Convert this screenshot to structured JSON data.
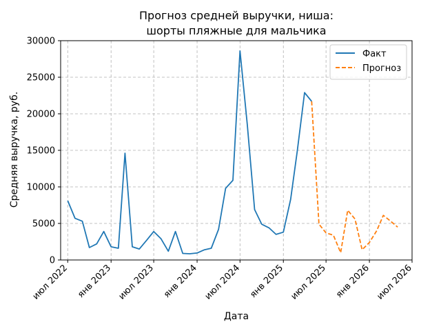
{
  "chart_data": {
    "type": "line",
    "title_lines": [
      "Прогноз средней выручки, ниша:",
      "шорты пляжные для мальчика"
    ],
    "xlabel": "Дата",
    "ylabel": "Средняя выручка, руб.",
    "ylim": [
      0,
      30000
    ],
    "yticks": [
      0,
      5000,
      10000,
      15000,
      20000,
      25000,
      30000
    ],
    "xlim": [
      "2022-06-01",
      "2026-07-01"
    ],
    "xticks": [
      {
        "date": "2022-07-01",
        "label": "июл 2022"
      },
      {
        "date": "2023-01-01",
        "label": "янв 2023"
      },
      {
        "date": "2023-07-01",
        "label": "июл 2023"
      },
      {
        "date": "2024-01-01",
        "label": "янв 2024"
      },
      {
        "date": "2024-07-01",
        "label": "июл 2024"
      },
      {
        "date": "2025-01-01",
        "label": "янв 2025"
      },
      {
        "date": "2025-07-01",
        "label": "июл 2025"
      },
      {
        "date": "2026-01-01",
        "label": "янв 2026"
      },
      {
        "date": "2026-07-01",
        "label": "июл 2026"
      }
    ],
    "grid": true,
    "legend_position": "top-right",
    "series": [
      {
        "name": "Факт",
        "color": "#1f77b4",
        "style": "solid",
        "points": [
          [
            "2022-07-01",
            8100
          ],
          [
            "2022-08-01",
            5700
          ],
          [
            "2022-09-01",
            5300
          ],
          [
            "2022-10-01",
            1700
          ],
          [
            "2022-11-01",
            2200
          ],
          [
            "2022-12-01",
            3900
          ],
          [
            "2023-01-01",
            1800
          ],
          [
            "2023-02-01",
            1600
          ],
          [
            "2023-03-01",
            14600
          ],
          [
            "2023-04-01",
            1800
          ],
          [
            "2023-05-01",
            1500
          ],
          [
            "2023-06-01",
            2700
          ],
          [
            "2023-07-01",
            3900
          ],
          [
            "2023-08-01",
            2900
          ],
          [
            "2023-09-01",
            1200
          ],
          [
            "2023-10-01",
            3900
          ],
          [
            "2023-11-01",
            900
          ],
          [
            "2023-12-01",
            850
          ],
          [
            "2024-01-01",
            950
          ],
          [
            "2024-02-01",
            1400
          ],
          [
            "2024-03-01",
            1600
          ],
          [
            "2024-04-01",
            4200
          ],
          [
            "2024-05-01",
            9800
          ],
          [
            "2024-06-01",
            10900
          ],
          [
            "2024-07-01",
            28600
          ],
          [
            "2024-08-01",
            18500
          ],
          [
            "2024-09-01",
            6900
          ],
          [
            "2024-10-01",
            4900
          ],
          [
            "2024-11-01",
            4400
          ],
          [
            "2024-12-01",
            3500
          ],
          [
            "2025-01-01",
            3800
          ],
          [
            "2025-02-01",
            8300
          ],
          [
            "2025-03-01",
            14900
          ],
          [
            "2025-04-01",
            22900
          ],
          [
            "2025-05-01",
            21700
          ]
        ]
      },
      {
        "name": "Прогноз",
        "color": "#ff7f0e",
        "style": "dashed",
        "points": [
          [
            "2025-05-01",
            21700
          ],
          [
            "2025-06-01",
            4900
          ],
          [
            "2025-07-01",
            3700
          ],
          [
            "2025-08-01",
            3400
          ],
          [
            "2025-09-01",
            1000
          ],
          [
            "2025-10-01",
            6800
          ],
          [
            "2025-11-01",
            5600
          ],
          [
            "2025-12-01",
            1400
          ],
          [
            "2026-01-01",
            2400
          ],
          [
            "2026-02-01",
            4000
          ],
          [
            "2026-03-01",
            6100
          ],
          [
            "2026-04-01",
            5300
          ],
          [
            "2026-05-01",
            4500
          ]
        ]
      }
    ]
  }
}
